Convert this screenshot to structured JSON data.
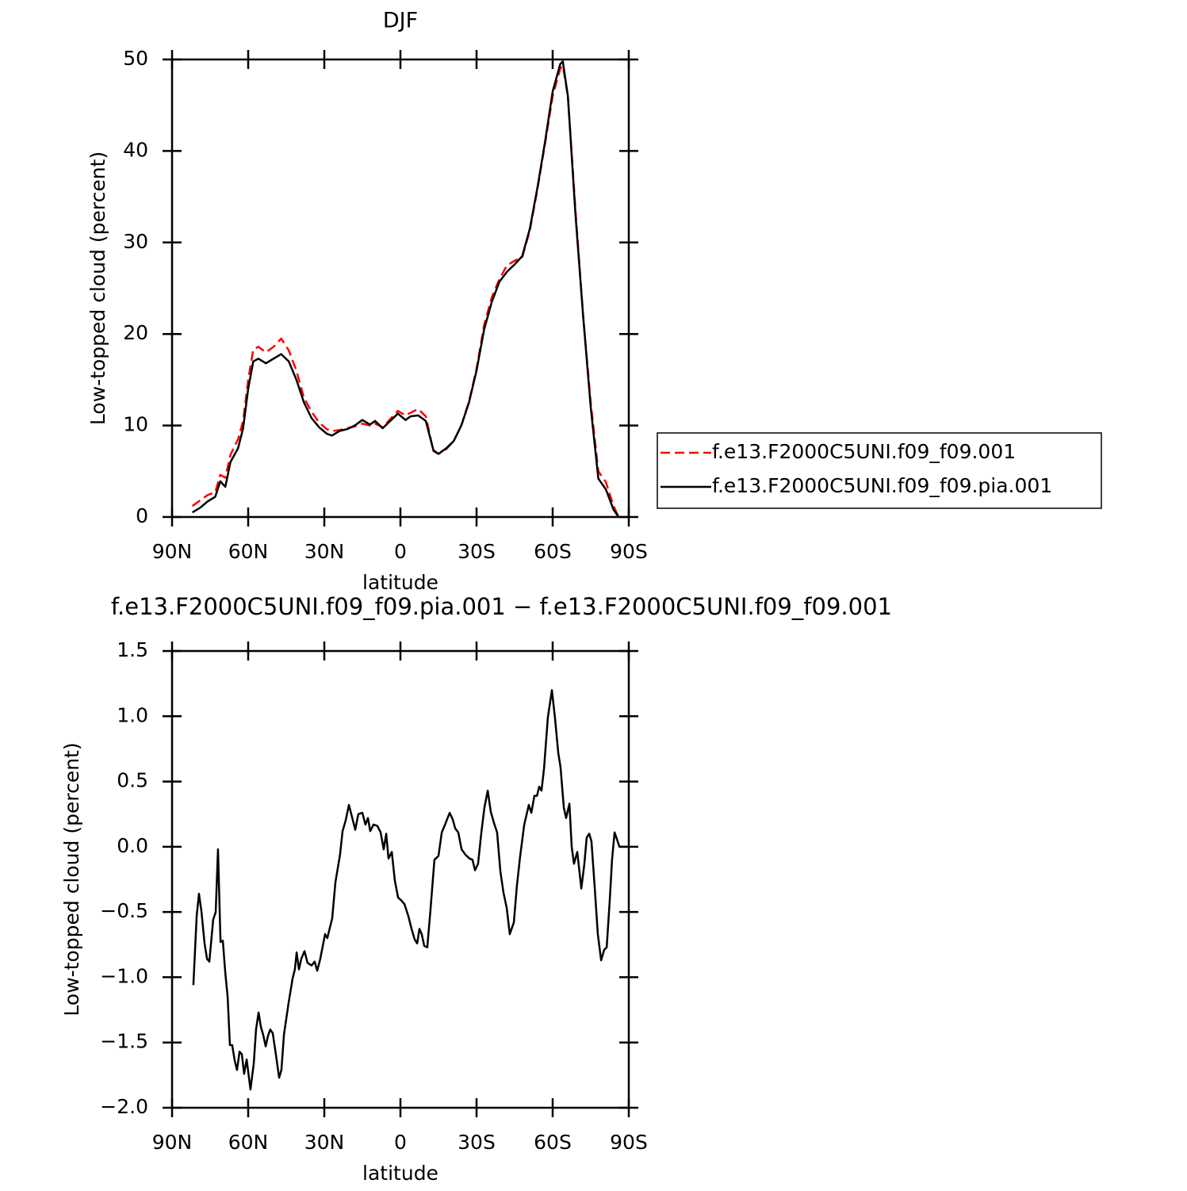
{
  "chart_data": [
    {
      "type": "line",
      "title": "DJF",
      "xlabel": "latitude",
      "ylabel": "Low-topped cloud (percent)",
      "xlim": [
        90,
        -90
      ],
      "xticks": [
        {
          "value": 90,
          "label": "90N"
        },
        {
          "value": 60,
          "label": "60N"
        },
        {
          "value": 30,
          "label": "30N"
        },
        0,
        {
          "value": -30,
          "label": "30S"
        },
        {
          "value": -60,
          "label": "60S"
        },
        {
          "value": -90,
          "label": "90S"
        }
      ],
      "ylim": [
        0,
        50
      ],
      "yticks": [
        0,
        10,
        20,
        30,
        40,
        50
      ],
      "x": [
        82,
        79,
        76,
        73,
        71,
        69,
        67,
        64,
        62,
        60,
        58,
        56,
        53,
        50,
        47,
        44,
        41,
        38,
        35,
        32,
        29,
        27,
        24,
        21,
        18,
        15,
        12,
        10,
        7,
        4,
        1,
        -2,
        -4,
        -7,
        -10,
        -13,
        -15,
        -18,
        -21,
        -24,
        -27,
        -30,
        -33,
        -36,
        -39,
        -42,
        -45,
        -48,
        -51,
        -54,
        -57,
        -60,
        -63,
        -64,
        -66,
        -69,
        -72,
        -75,
        -78,
        -81,
        -84,
        -86
      ],
      "series": [
        {
          "name": "f.e13.F2000C5UNI.f09_f09.001",
          "color": "#ff0000",
          "linestyle": "dashed",
          "values": [
            1.2,
            1.8,
            2.4,
            2.7,
            4.6,
            4.3,
            6.8,
            8.5,
            10.5,
            15,
            18.3,
            18.6,
            18.0,
            18.6,
            19.5,
            18.2,
            16.0,
            13.0,
            11.5,
            10.3,
            9.6,
            9.4,
            9.5,
            9.7,
            9.9,
            10.2,
            10.0,
            10.2,
            9.8,
            10.7,
            11.6,
            11.1,
            11.4,
            11.8,
            11.0,
            7.2,
            6.9,
            7.4,
            8.3,
            10.0,
            12.6,
            16.2,
            21.0,
            24.0,
            26.0,
            27.5,
            28.0,
            28.4,
            31.3,
            35.8,
            40.8,
            46,
            49.0,
            49.3,
            46,
            33.5,
            22,
            12.5,
            5,
            3.8,
            1.2,
            0
          ]
        },
        {
          "name": "f.e13.F2000C5UNI.f09_f09.pia.001",
          "color": "#000000",
          "linestyle": "solid",
          "values": [
            0.5,
            1.0,
            1.7,
            2.2,
            3.9,
            3.3,
            6.0,
            7.5,
            9.7,
            14,
            17,
            17.3,
            16.8,
            17.3,
            17.8,
            17.0,
            15.0,
            12.5,
            10.8,
            9.8,
            9.1,
            8.9,
            9.4,
            9.6,
            10.0,
            10.6,
            10.1,
            10.5,
            9.7,
            10.5,
            11.3,
            10.6,
            11.0,
            11.1,
            10.5,
            7.3,
            6.9,
            7.5,
            8.3,
            10.0,
            12.5,
            16,
            20.5,
            23.5,
            25.7,
            26.8,
            27.6,
            28.5,
            31.5,
            36,
            41,
            46.5,
            49.5,
            49.8,
            46,
            33,
            22,
            12,
            4.2,
            3.0,
            0.8,
            0
          ]
        }
      ]
    },
    {
      "type": "line",
      "title": "f.e13.F2000C5UNI.f09_f09.pia.001 − f.e13.F2000C5UNI.f09_f09.001",
      "xlabel": "latitude",
      "ylabel": "Low-topped cloud (percent)",
      "xlim": [
        90,
        -90
      ],
      "xticks": [
        {
          "value": 90,
          "label": "90N"
        },
        {
          "value": 60,
          "label": "60N"
        },
        {
          "value": 30,
          "label": "30N"
        },
        0,
        {
          "value": -30,
          "label": "30S"
        },
        {
          "value": -60,
          "label": "60S"
        },
        {
          "value": -90,
          "label": "90S"
        }
      ],
      "ylim": [
        -2.0,
        1.5
      ],
      "yticks": [
        {
          "value": -2.0,
          "label": "−2.0"
        },
        {
          "value": -1.5,
          "label": "−1.5"
        },
        {
          "value": -1.0,
          "label": "−1.0"
        },
        {
          "value": -0.5,
          "label": "−0.5"
        },
        {
          "value": 0,
          "label": "0.0"
        },
        0.5,
        {
          "value": 1.0,
          "label": "1.0"
        },
        1.5
      ],
      "x": [
        81.6,
        80.3,
        79.4,
        78.4,
        77.2,
        76.2,
        75.3,
        73.8,
        72.8,
        71.9,
        70.9,
        70,
        69,
        68.1,
        67.2,
        66.3,
        65.3,
        64.4,
        63.4,
        62.5,
        61.6,
        60.6,
        59.1,
        57.8,
        56.9,
        55.9,
        55,
        54.1,
        53.1,
        52.2,
        51.3,
        50.3,
        49.1,
        47.8,
        46.9,
        45.9,
        44.1,
        42.5,
        41.6,
        40.9,
        40,
        39.1,
        37.8,
        36.6,
        35,
        33.8,
        32.8,
        31.6,
        29.7,
        28.8,
        27.8,
        26.9,
        25.6,
        23.8,
        22.8,
        21.6,
        20.3,
        19.1,
        17.8,
        16.6,
        15,
        13.8,
        12.8,
        11.9,
        10.6,
        9.1,
        7.8,
        6.6,
        5.6,
        4.7,
        3.4,
        2.2,
        0.9,
        -0.3,
        -1.6,
        -3.1,
        -4.4,
        -5.6,
        -6.6,
        -7.5,
        -8.4,
        -9.4,
        -10.6,
        -11.9,
        -13.4,
        -15,
        -16.3,
        -17.8,
        -19.4,
        -20.6,
        -21.6,
        -22.8,
        -24.1,
        -25.6,
        -27.2,
        -28.4,
        -29.4,
        -30.6,
        -31.9,
        -33.1,
        -34.4,
        -35.6,
        -36.9,
        -38.1,
        -39.4,
        -40.6,
        -41.9,
        -43.1,
        -44.7,
        -45.9,
        -47.2,
        -48.8,
        -50.6,
        -51.6,
        -52.8,
        -53.8,
        -54.7,
        -55.6,
        -56.6,
        -58.1,
        -59.7,
        -60.9,
        -62.2,
        -63.1,
        -64.4,
        -65.3,
        -66.6,
        -67.5,
        -68.4,
        -69.7,
        -71.3,
        -72.5,
        -73.4,
        -74.4,
        -75.3,
        -76.6,
        -77.8,
        -79.1,
        -80.3,
        -81.3,
        -82.5,
        -83.4,
        -84.4,
        -85.3,
        -86.3,
        -90
      ],
      "series": [
        {
          "color": "#000000",
          "linestyle": "solid",
          "values": [
            -1.06,
            -0.53,
            -0.36,
            -0.5,
            -0.74,
            -0.86,
            -0.88,
            -0.56,
            -0.5,
            -0.02,
            -0.73,
            -0.72,
            -0.97,
            -1.15,
            -1.52,
            -1.52,
            -1.64,
            -1.71,
            -1.57,
            -1.59,
            -1.74,
            -1.63,
            -1.86,
            -1.66,
            -1.4,
            -1.27,
            -1.38,
            -1.44,
            -1.53,
            -1.45,
            -1.4,
            -1.43,
            -1.59,
            -1.77,
            -1.71,
            -1.44,
            -1.2,
            -1.01,
            -0.94,
            -0.81,
            -0.94,
            -0.86,
            -0.8,
            -0.89,
            -0.91,
            -0.88,
            -0.95,
            -0.86,
            -0.67,
            -0.7,
            -0.62,
            -0.55,
            -0.27,
            -0.06,
            0.12,
            0.2,
            0.32,
            0.23,
            0.13,
            0.25,
            0.26,
            0.17,
            0.22,
            0.12,
            0.17,
            0.16,
            0.11,
            -0.02,
            0.1,
            -0.09,
            -0.04,
            -0.26,
            -0.39,
            -0.41,
            -0.44,
            -0.53,
            -0.63,
            -0.71,
            -0.74,
            -0.63,
            -0.67,
            -0.76,
            -0.77,
            -0.47,
            -0.1,
            -0.07,
            0.11,
            0.18,
            0.26,
            0.21,
            0.14,
            0.11,
            -0.02,
            -0.06,
            -0.09,
            -0.1,
            -0.18,
            -0.13,
            0.11,
            0.3,
            0.43,
            0.27,
            0.18,
            0.11,
            -0.19,
            -0.35,
            -0.47,
            -0.67,
            -0.58,
            -0.3,
            -0.07,
            0.17,
            0.32,
            0.26,
            0.39,
            0.39,
            0.46,
            0.43,
            0.6,
            0.99,
            1.2,
            0.99,
            0.72,
            0.61,
            0.3,
            0.22,
            0.33,
            0.0,
            -0.13,
            -0.04,
            -0.32,
            -0.13,
            0.07,
            0.1,
            0.04,
            -0.32,
            -0.67,
            -0.87,
            -0.79,
            -0.77,
            -0.41,
            -0.1,
            0.11,
            0.06,
            0.0,
            0.0
          ]
        }
      ]
    }
  ]
}
